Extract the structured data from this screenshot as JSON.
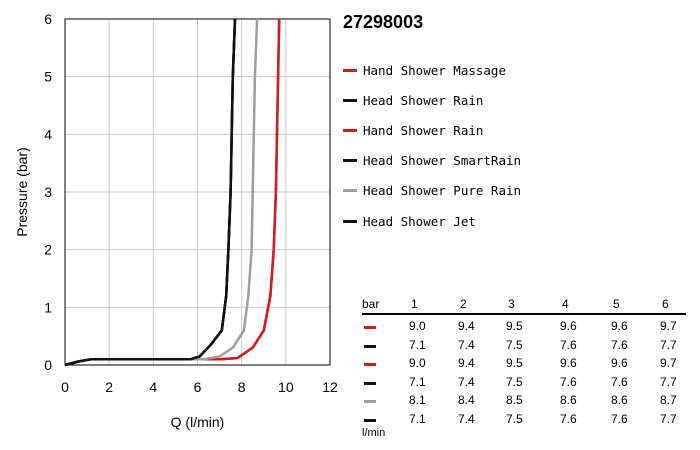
{
  "chart_data": {
    "type": "line",
    "title": "27298003",
    "xlabel": "Q (l/min)",
    "ylabel": "Pressure (bar)",
    "xlim": [
      0,
      12
    ],
    "ylim": [
      0,
      6
    ],
    "x_ticks": [
      "0",
      "2",
      "4",
      "6",
      "8",
      "10",
      "12"
    ],
    "y_ticks": [
      "0",
      "1",
      "2",
      "3",
      "4",
      "5",
      "6"
    ],
    "grid": true,
    "legend_position": "right",
    "series": [
      {
        "name": "Hand Shower Massage",
        "color": "#cc1f24",
        "points": [
          [
            0,
            0
          ],
          [
            0.6,
            0.06
          ],
          [
            1.2,
            0.1
          ],
          [
            7.0,
            0.1
          ],
          [
            7.8,
            0.12
          ],
          [
            8.5,
            0.3
          ],
          [
            9.0,
            0.6
          ],
          [
            9.3,
            1.2
          ],
          [
            9.45,
            2.0
          ],
          [
            9.55,
            3.0
          ],
          [
            9.6,
            4.0
          ],
          [
            9.65,
            5.0
          ],
          [
            9.7,
            6.0
          ]
        ]
      },
      {
        "name": "Head Shower Rain",
        "color": "#111111",
        "points": [
          [
            0,
            0
          ],
          [
            0.6,
            0.06
          ],
          [
            1.2,
            0.1
          ],
          [
            5.7,
            0.1
          ],
          [
            6.1,
            0.15
          ],
          [
            6.6,
            0.35
          ],
          [
            7.1,
            0.6
          ],
          [
            7.3,
            1.2
          ],
          [
            7.4,
            2.0
          ],
          [
            7.5,
            3.0
          ],
          [
            7.55,
            4.0
          ],
          [
            7.6,
            5.0
          ],
          [
            7.7,
            6.0
          ]
        ]
      },
      {
        "name": "Hand Shower Rain",
        "color": "#cc1f24",
        "points": [
          [
            0,
            0
          ],
          [
            0.6,
            0.06
          ],
          [
            1.2,
            0.1
          ],
          [
            7.0,
            0.1
          ],
          [
            7.8,
            0.12
          ],
          [
            8.5,
            0.3
          ],
          [
            9.0,
            0.6
          ],
          [
            9.3,
            1.2
          ],
          [
            9.45,
            2.0
          ],
          [
            9.55,
            3.0
          ],
          [
            9.6,
            4.0
          ],
          [
            9.65,
            5.0
          ],
          [
            9.7,
            6.0
          ]
        ]
      },
      {
        "name": "Head Shower SmartRain",
        "color": "#111111",
        "points": [
          [
            0,
            0
          ],
          [
            0.6,
            0.06
          ],
          [
            1.2,
            0.1
          ],
          [
            5.7,
            0.1
          ],
          [
            6.1,
            0.15
          ],
          [
            6.6,
            0.35
          ],
          [
            7.1,
            0.6
          ],
          [
            7.3,
            1.2
          ],
          [
            7.4,
            2.0
          ],
          [
            7.5,
            3.0
          ],
          [
            7.55,
            4.0
          ],
          [
            7.6,
            5.0
          ],
          [
            7.7,
            6.0
          ]
        ]
      },
      {
        "name": "Head Shower Pure Rain",
        "color": "#9e9e9e",
        "points": [
          [
            0,
            0
          ],
          [
            0.6,
            0.06
          ],
          [
            1.2,
            0.1
          ],
          [
            6.3,
            0.1
          ],
          [
            7.0,
            0.15
          ],
          [
            7.6,
            0.3
          ],
          [
            8.1,
            0.6
          ],
          [
            8.3,
            1.2
          ],
          [
            8.45,
            2.0
          ],
          [
            8.5,
            3.0
          ],
          [
            8.55,
            4.0
          ],
          [
            8.6,
            5.0
          ],
          [
            8.7,
            6.0
          ]
        ]
      },
      {
        "name": "Head Shower Jet",
        "color": "#111111",
        "points": [
          [
            0,
            0
          ],
          [
            0.6,
            0.06
          ],
          [
            1.2,
            0.1
          ],
          [
            5.7,
            0.1
          ],
          [
            6.1,
            0.15
          ],
          [
            6.6,
            0.35
          ],
          [
            7.1,
            0.6
          ],
          [
            7.3,
            1.2
          ],
          [
            7.4,
            2.0
          ],
          [
            7.5,
            3.0
          ],
          [
            7.55,
            4.0
          ],
          [
            7.6,
            5.0
          ],
          [
            7.7,
            6.0
          ]
        ]
      }
    ],
    "table": {
      "header_label": "bar",
      "columns": [
        "1",
        "2",
        "3",
        "4",
        "5",
        "6"
      ],
      "unit_label": "l/min",
      "rows": [
        {
          "color": "#cc1f24",
          "values": [
            "9.0",
            "9.4",
            "9.5",
            "9.6",
            "9.6",
            "9.7"
          ]
        },
        {
          "color": "#111111",
          "values": [
            "7.1",
            "7.4",
            "7.5",
            "7.6",
            "7.6",
            "7.7"
          ]
        },
        {
          "color": "#cc1f24",
          "values": [
            "9.0",
            "9.4",
            "9.5",
            "9.6",
            "9.6",
            "9.7"
          ]
        },
        {
          "color": "#111111",
          "values": [
            "7.1",
            "7.4",
            "7.5",
            "7.6",
            "7.6",
            "7.7"
          ]
        },
        {
          "color": "#9e9e9e",
          "values": [
            "8.1",
            "8.4",
            "8.5",
            "8.6",
            "8.6",
            "8.7"
          ]
        },
        {
          "color": "#111111",
          "values": [
            "7.1",
            "7.4",
            "7.5",
            "7.6",
            "7.6",
            "7.7"
          ]
        }
      ]
    }
  }
}
